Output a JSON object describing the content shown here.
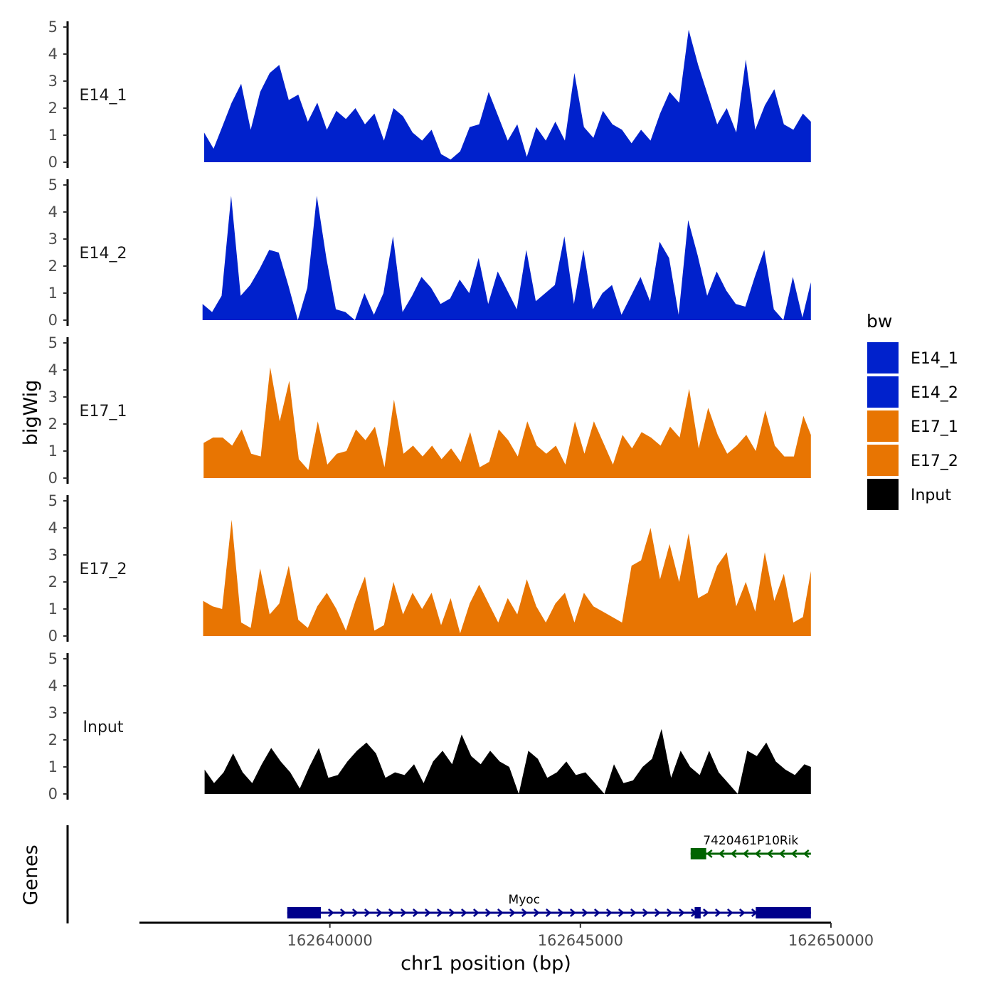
{
  "chart_data": {
    "type": "area",
    "title": "",
    "ylabel": "bigWig",
    "xlabel": "chr1 position (bp)",
    "genes_label": "Genes",
    "ylim": [
      0,
      5
    ],
    "yticks": [
      0,
      1,
      2,
      3,
      4,
      5
    ],
    "xlim": [
      162636200,
      162650000
    ],
    "xticks": [
      162640000,
      162645000,
      162650000
    ],
    "xtick_labels": [
      "162640000",
      "162645000",
      "162650000"
    ],
    "legend": {
      "title": "bw",
      "position": "right",
      "entries": [
        {
          "label": "E14_1",
          "color": "#0021CC"
        },
        {
          "label": "E14_2",
          "color": "#0021CC"
        },
        {
          "label": "E17_1",
          "color": "#E87502"
        },
        {
          "label": "E17_2",
          "color": "#E87502"
        },
        {
          "label": "Input",
          "color": "#000000"
        }
      ]
    },
    "series": [
      {
        "name": "E14_1",
        "color": "#0021CC",
        "x": [
          162637490,
          162637680,
          162637850,
          162638040,
          162638230,
          162638420,
          162638610,
          162638800,
          162638990,
          162639180,
          162639370,
          162639560,
          162639750,
          162639940,
          162640130,
          162640320,
          162640510,
          162640700,
          162640890,
          162641080,
          162641270,
          162641460,
          162641650,
          162641840,
          162642030,
          162642220,
          162642410,
          162642600,
          162642790,
          162642980,
          162643170,
          162643360,
          162643550,
          162643740,
          162643930,
          162644120,
          162644310,
          162644500,
          162644690,
          162644880,
          162645070,
          162645260,
          162645450,
          162645640,
          162645830,
          162646020,
          162646210,
          162646400,
          162646590,
          162646780,
          162646970,
          162647160,
          162647350,
          162647540,
          162647730,
          162647920,
          162648110,
          162648300,
          162648490,
          162648680,
          162648870,
          162649060,
          162649250,
          162649440,
          162649600
        ],
        "values": [
          1.1,
          0.5,
          1.3,
          2.2,
          2.9,
          1.2,
          2.6,
          3.3,
          3.6,
          2.3,
          2.5,
          1.5,
          2.2,
          1.2,
          1.9,
          1.6,
          2.0,
          1.4,
          1.8,
          0.8,
          2.0,
          1.7,
          1.1,
          0.8,
          1.2,
          0.3,
          0.1,
          0.4,
          1.3,
          1.4,
          2.6,
          1.7,
          0.8,
          1.4,
          0.2,
          1.3,
          0.8,
          1.5,
          0.8,
          3.3,
          1.3,
          0.9,
          1.9,
          1.4,
          1.2,
          0.7,
          1.2,
          0.8,
          1.8,
          2.6,
          2.2,
          4.9,
          3.6,
          2.5,
          1.4,
          2.0,
          1.1,
          3.8,
          1.2,
          2.1,
          2.7,
          1.4,
          1.2,
          1.8,
          1.5
        ]
      },
      {
        "name": "E14_2",
        "color": "#0021CC",
        "x": [
          162637460,
          162637650,
          162637840,
          162638030,
          162638220,
          162638410,
          162638600,
          162638790,
          162638980,
          162639170,
          162639360,
          162639550,
          162639740,
          162639930,
          162640120,
          162640310,
          162640500,
          162640690,
          162640880,
          162641070,
          162641260,
          162641450,
          162641640,
          162641830,
          162642020,
          162642210,
          162642400,
          162642590,
          162642780,
          162642970,
          162643160,
          162643350,
          162643540,
          162643730,
          162643920,
          162644110,
          162644300,
          162644490,
          162644680,
          162644870,
          162645060,
          162645250,
          162645440,
          162645630,
          162645820,
          162646010,
          162646200,
          162646390,
          162646580,
          162646770,
          162646960,
          162647150,
          162647340,
          162647530,
          162647720,
          162647910,
          162648100,
          162648290,
          162648480,
          162648670,
          162648860,
          162649050,
          162649240,
          162649430,
          162649600
        ],
        "values": [
          0.6,
          0.3,
          0.9,
          4.6,
          0.9,
          1.3,
          1.9,
          2.6,
          2.5,
          1.3,
          0.0,
          1.2,
          4.6,
          2.3,
          0.4,
          0.3,
          0.0,
          1.0,
          0.2,
          1.0,
          3.1,
          0.3,
          0.9,
          1.6,
          1.2,
          0.6,
          0.8,
          1.5,
          1.0,
          2.3,
          0.6,
          1.8,
          1.1,
          0.4,
          2.6,
          0.7,
          1.0,
          1.3,
          3.1,
          0.6,
          2.6,
          0.4,
          1.0,
          1.3,
          0.2,
          0.9,
          1.6,
          0.7,
          2.9,
          2.3,
          0.2,
          3.7,
          2.4,
          0.9,
          1.8,
          1.1,
          0.6,
          0.5,
          1.6,
          2.6,
          0.4,
          0.0,
          1.6,
          0.1,
          1.4
        ]
      },
      {
        "name": "E17_1",
        "color": "#E87502",
        "x": [
          162637480,
          162637670,
          162637860,
          162638050,
          162638240,
          162638430,
          162638620,
          162638810,
          162639000,
          162639190,
          162639380,
          162639570,
          162639760,
          162639950,
          162640140,
          162640330,
          162640520,
          162640710,
          162640900,
          162641090,
          162641280,
          162641470,
          162641660,
          162641850,
          162642040,
          162642230,
          162642420,
          162642610,
          162642800,
          162642990,
          162643180,
          162643370,
          162643560,
          162643750,
          162643940,
          162644130,
          162644320,
          162644510,
          162644700,
          162644890,
          162645080,
          162645270,
          162645460,
          162645650,
          162645840,
          162646030,
          162646220,
          162646410,
          162646600,
          162646790,
          162646980,
          162647170,
          162647360,
          162647550,
          162647740,
          162647930,
          162648120,
          162648310,
          162648500,
          162648690,
          162648880,
          162649070,
          162649260,
          162649450,
          162649600
        ],
        "values": [
          1.3,
          1.5,
          1.5,
          1.2,
          1.8,
          0.9,
          0.8,
          4.1,
          2.1,
          3.6,
          0.7,
          0.3,
          2.1,
          0.5,
          0.9,
          1.0,
          1.8,
          1.4,
          1.9,
          0.4,
          2.9,
          0.9,
          1.2,
          0.8,
          1.2,
          0.7,
          1.1,
          0.6,
          1.7,
          0.4,
          0.6,
          1.8,
          1.4,
          0.8,
          2.1,
          1.2,
          0.9,
          1.2,
          0.5,
          2.1,
          0.9,
          2.1,
          1.3,
          0.5,
          1.6,
          1.1,
          1.7,
          1.5,
          1.2,
          1.9,
          1.5,
          3.3,
          1.1,
          2.6,
          1.6,
          0.9,
          1.2,
          1.6,
          1.0,
          2.5,
          1.2,
          0.8,
          0.8,
          2.3,
          1.6
        ]
      },
      {
        "name": "E17_2",
        "color": "#E87502",
        "x": [
          162637470,
          162637660,
          162637850,
          162638040,
          162638230,
          162638420,
          162638610,
          162638800,
          162638990,
          162639180,
          162639370,
          162639560,
          162639750,
          162639940,
          162640130,
          162640320,
          162640510,
          162640700,
          162640890,
          162641080,
          162641270,
          162641460,
          162641650,
          162641840,
          162642030,
          162642220,
          162642410,
          162642600,
          162642790,
          162642980,
          162643170,
          162643360,
          162643550,
          162643740,
          162643930,
          162644120,
          162644310,
          162644500,
          162644690,
          162644880,
          162645070,
          162645260,
          162645450,
          162645640,
          162645830,
          162646020,
          162646210,
          162646400,
          162646590,
          162646780,
          162646970,
          162647160,
          162647350,
          162647540,
          162647730,
          162647920,
          162648110,
          162648300,
          162648490,
          162648680,
          162648870,
          162649060,
          162649250,
          162649440,
          162649600
        ],
        "values": [
          1.3,
          1.1,
          1.0,
          4.3,
          0.5,
          0.3,
          2.5,
          0.8,
          1.2,
          2.6,
          0.6,
          0.3,
          1.1,
          1.6,
          1.0,
          0.2,
          1.3,
          2.2,
          0.2,
          0.4,
          2.0,
          0.8,
          1.6,
          1.0,
          1.6,
          0.4,
          1.4,
          0.1,
          1.2,
          1.9,
          1.2,
          0.5,
          1.4,
          0.8,
          2.1,
          1.1,
          0.5,
          1.2,
          1.6,
          0.5,
          1.6,
          1.1,
          0.9,
          0.7,
          0.5,
          2.6,
          2.8,
          4.0,
          2.1,
          3.4,
          2.0,
          3.8,
          1.4,
          1.6,
          2.6,
          3.1,
          1.1,
          2.0,
          0.9,
          3.1,
          1.3,
          2.3,
          0.5,
          0.7,
          2.4
        ]
      },
      {
        "name": "Input",
        "color": "#000000",
        "x": [
          162637500,
          162637690,
          162637880,
          162638070,
          162638260,
          162638450,
          162638640,
          162638830,
          162639020,
          162639210,
          162639400,
          162639590,
          162639780,
          162639970,
          162640160,
          162640350,
          162640540,
          162640730,
          162640920,
          162641110,
          162641300,
          162641490,
          162641680,
          162641870,
          162642060,
          162642250,
          162642440,
          162642630,
          162642820,
          162643010,
          162643200,
          162643390,
          162643580,
          162643770,
          162643960,
          162644150,
          162644340,
          162644530,
          162644720,
          162644910,
          162645100,
          162645290,
          162645480,
          162645670,
          162645860,
          162646050,
          162646240,
          162646430,
          162646620,
          162646810,
          162647000,
          162647190,
          162647380,
          162647570,
          162647760,
          162647950,
          162648140,
          162648330,
          162648520,
          162648710,
          162648900,
          162649090,
          162649280,
          162649470,
          162649600
        ],
        "values": [
          0.9,
          0.4,
          0.8,
          1.5,
          0.8,
          0.4,
          1.1,
          1.7,
          1.2,
          0.8,
          0.2,
          1.0,
          1.7,
          0.6,
          0.7,
          1.2,
          1.6,
          1.9,
          1.5,
          0.6,
          0.8,
          0.7,
          1.1,
          0.4,
          1.2,
          1.6,
          1.1,
          2.2,
          1.4,
          1.1,
          1.6,
          1.2,
          1.0,
          0.0,
          1.6,
          1.3,
          0.6,
          0.8,
          1.2,
          0.7,
          0.8,
          0.4,
          0.0,
          1.1,
          0.4,
          0.5,
          1.0,
          1.3,
          2.4,
          0.6,
          1.6,
          1.0,
          0.7,
          1.6,
          0.8,
          0.4,
          0.0,
          1.6,
          1.4,
          1.9,
          1.2,
          0.9,
          0.7,
          1.1,
          1.0
        ]
      }
    ],
    "genes": [
      {
        "name": "7420461P10Rik",
        "strand": "-",
        "color": "#006400",
        "start": 162647200,
        "end": 162649600,
        "exons": [
          [
            162647200,
            162647510
          ]
        ]
      },
      {
        "name": "Myoc",
        "strand": "+",
        "color": "#00008B",
        "start": 162639150,
        "end": 162649600,
        "exons": [
          [
            162639150,
            162639820
          ],
          [
            162647280,
            162647400
          ],
          [
            162648500,
            162649600
          ]
        ]
      }
    ]
  }
}
